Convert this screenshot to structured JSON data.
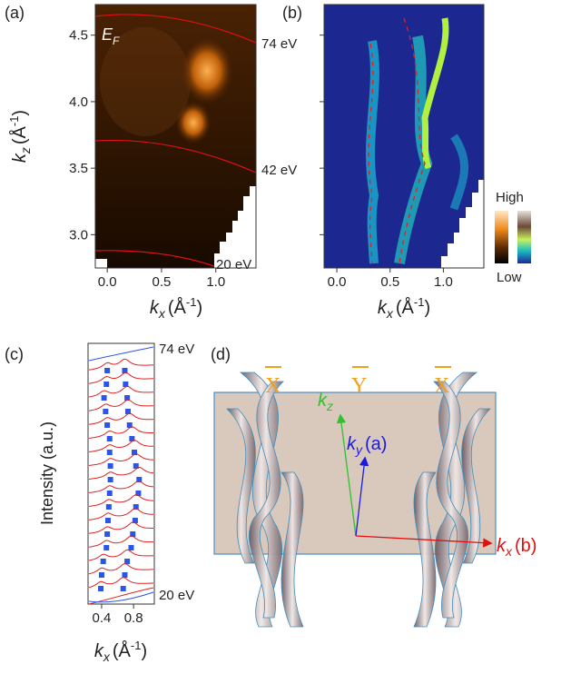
{
  "chart_data": [
    {
      "type": "heatmap",
      "panel": "(a)",
      "annotation": {
        "main": "E",
        "sub": "F"
      },
      "line_labels": [
        "74 eV",
        "42 eV",
        "20 eV"
      ],
      "xlabel": {
        "main": "k",
        "sub": "x",
        "unit": "(Å",
        "sup": "-1",
        "close": ")"
      },
      "ylabel": {
        "main": "k",
        "sub": "z",
        "unit": "(Å",
        "sup": "-1",
        "close": ")"
      },
      "xlim": [
        -0.11,
        1.37
      ],
      "xticks": [
        {
          "value": 0,
          "label": "0.0"
        },
        {
          "value": 0.5,
          "label": "0.5"
        },
        {
          "value": 1,
          "label": "1.0"
        }
      ],
      "ylim": [
        2.75,
        4.73
      ],
      "yticks": [
        {
          "value": 3,
          "label": "3.0"
        },
        {
          "value": 3.5,
          "label": "3.5"
        },
        {
          "value": 4,
          "label": "4.0"
        },
        {
          "value": 4.5,
          "label": "4.5"
        }
      ]
    },
    {
      "type": "heatmap",
      "panel": "(b)",
      "colorbar_labels": [
        "High",
        "Low"
      ],
      "xlabel": {
        "main": "k",
        "sub": "x",
        "unit": "(Å",
        "sup": "-1",
        "close": ")"
      },
      "xlim": [
        -0.12,
        1.38
      ],
      "xticks": [
        {
          "value": 0,
          "label": "0.0"
        },
        {
          "value": 0.5,
          "label": "0.5"
        },
        {
          "value": 1,
          "label": "1.0"
        }
      ],
      "ylim": [
        2.75,
        4.73
      ],
      "yticks": [
        3,
        3.5,
        4,
        4.5
      ]
    },
    {
      "type": "waterfall",
      "panel": "(c)",
      "ylabel": "Intensity (a.u.)",
      "curve_labels": [
        "74 eV",
        "20 eV"
      ],
      "xlabel": {
        "main": "k",
        "sub": "x",
        "unit": "(Å",
        "sup": "-1",
        "close": ")"
      },
      "xlim": [
        0.23,
        1.06
      ],
      "xticks": [
        0.4,
        0.8
      ],
      "peaks": {
        "color": "#2a55e6",
        "left": [
          0.47,
          0.46,
          0.43,
          0.45,
          0.47,
          0.5,
          0.5,
          0.51,
          0.51,
          0.5,
          0.49,
          0.48,
          0.47,
          0.46,
          0.42,
          0.4,
          0.39
        ],
        "right": [
          0.69,
          0.7,
          0.72,
          0.73,
          0.75,
          0.78,
          0.81,
          0.83,
          0.87,
          0.86,
          0.83,
          0.82,
          0.79,
          0.77,
          0.72,
          0.69,
          0.67
        ]
      }
    }
  ],
  "diagram": {
    "panel": "(d)",
    "points": [
      "X",
      "Y",
      "X"
    ],
    "kz": {
      "main": "k",
      "sub": "z"
    },
    "ky": {
      "main": "k",
      "sub": "y",
      "rest": "(a)"
    },
    "kx": {
      "main": "k",
      "sub": "x",
      "rest": "(b)"
    }
  }
}
